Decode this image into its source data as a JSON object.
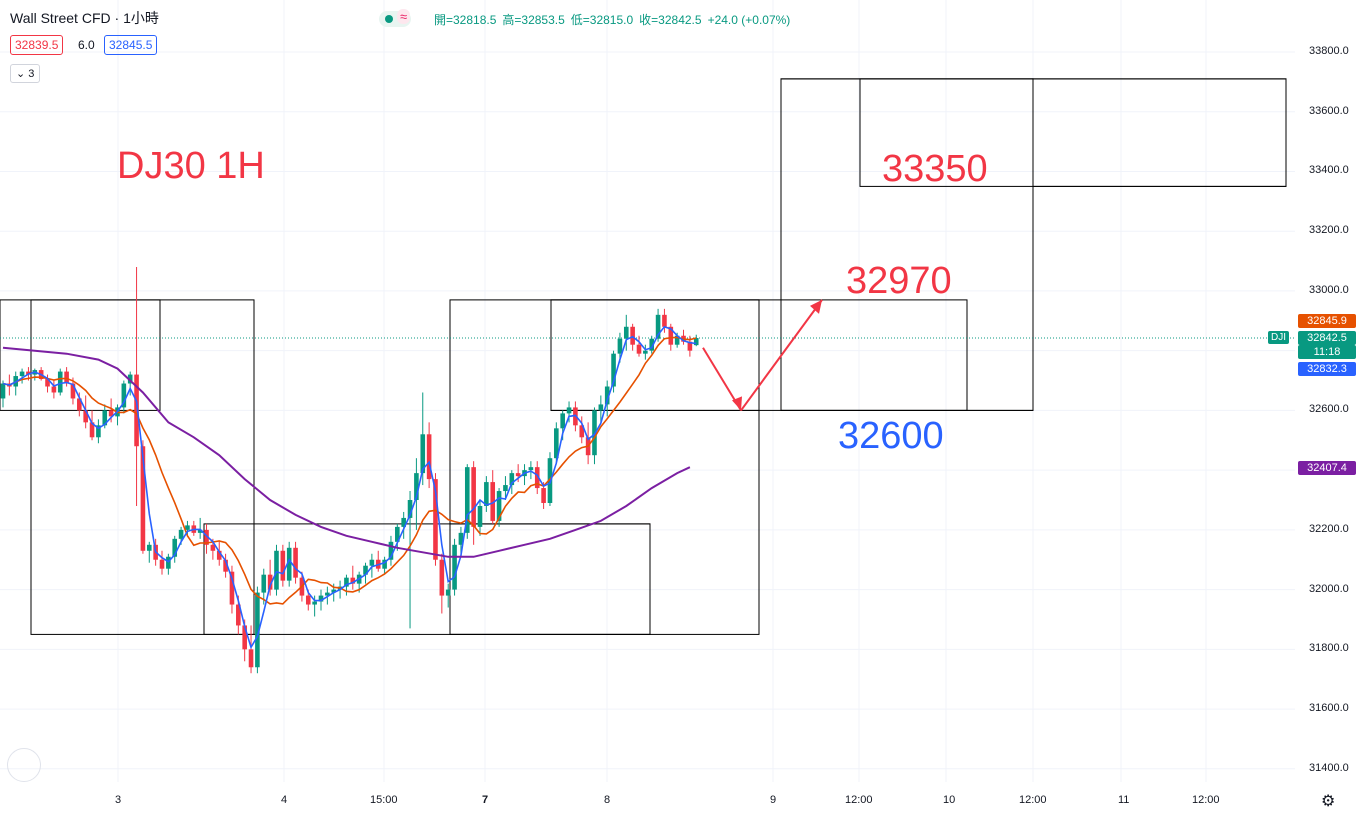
{
  "header": {
    "symbol": "Wall Street CFD",
    "interval_sep": " · ",
    "interval": "1小時",
    "ohlc": {
      "open": "開=32818.5",
      "high": "高=32853.5",
      "low": "低=32815.0",
      "close": "收=32842.5",
      "change": "+24.0 (+0.07%)"
    },
    "sell_price": "32839.5",
    "spread": "6.0",
    "buy_price": "32845.5",
    "indicator_count": "3"
  },
  "icons": [
    "status-dot-icon",
    "approximate-icon",
    "chevron-down-icon",
    "gear-icon",
    "circle-icon"
  ],
  "colors": {
    "up": "#089981",
    "down": "#f23645",
    "ma_fast": "#2962ff",
    "ma_mid": "#e65100",
    "ma_slow": "#7b1fa2",
    "annotation_red": "#f23645",
    "annotation_blue": "#2962ff"
  },
  "price_scale": {
    "ticks": [
      "33800.0",
      "33600.0",
      "33400.0",
      "33200.0",
      "33000.0",
      "32800.0",
      "32600.0",
      "32400.0",
      "32200.0",
      "32000.0",
      "31800.0",
      "31600.0",
      "31400.0"
    ],
    "tags": {
      "ma_mid": "32845.9",
      "last": "32842.5",
      "countdown": "11:18",
      "ma_fast": "32832.3",
      "ma_slow": "32407.4",
      "symbol_tag": "DJI"
    }
  },
  "time_scale": {
    "ticks": [
      "3",
      "4",
      "15:00",
      "7",
      "8",
      "9",
      "12:00",
      "10",
      "12:00",
      "11",
      "12:00"
    ]
  },
  "annotations": {
    "title": "DJ30 1H",
    "target_1": "32970",
    "target_2": "33350",
    "support": "32600"
  },
  "chart_data": {
    "type": "candlestick",
    "title": "DJ30 1H",
    "ylim": [
      31330,
      33850
    ],
    "y_ticks": [
      33800,
      33600,
      33400,
      33200,
      33000,
      32800,
      32600,
      32400,
      32200,
      32000,
      31800,
      31600,
      31400
    ],
    "last_price": 32842.5,
    "grid": true,
    "candles": [
      [
        32640,
        32700,
        32610,
        32690
      ],
      [
        32690,
        32720,
        32650,
        32680
      ],
      [
        32680,
        32730,
        32650,
        32715
      ],
      [
        32715,
        32740,
        32690,
        32730
      ],
      [
        32730,
        32745,
        32700,
        32720
      ],
      [
        32720,
        32740,
        32700,
        32735
      ],
      [
        32735,
        32745,
        32700,
        32705
      ],
      [
        32705,
        32720,
        32660,
        32680
      ],
      [
        32680,
        32700,
        32640,
        32660
      ],
      [
        32660,
        32740,
        32650,
        32730
      ],
      [
        32730,
        32745,
        32680,
        32690
      ],
      [
        32690,
        32710,
        32620,
        32640
      ],
      [
        32640,
        32660,
        32580,
        32600
      ],
      [
        32600,
        32650,
        32540,
        32560
      ],
      [
        32560,
        32600,
        32500,
        32510
      ],
      [
        32510,
        32570,
        32490,
        32550
      ],
      [
        32550,
        32620,
        32540,
        32600
      ],
      [
        32600,
        32640,
        32560,
        32580
      ],
      [
        32580,
        32620,
        32550,
        32610
      ],
      [
        32610,
        32700,
        32590,
        32690
      ],
      [
        32690,
        32730,
        32650,
        32720
      ],
      [
        32720,
        33080,
        32280,
        32480
      ],
      [
        32480,
        32500,
        32120,
        32130
      ],
      [
        32130,
        32160,
        32090,
        32150
      ],
      [
        32150,
        32170,
        32080,
        32100
      ],
      [
        32100,
        32130,
        32050,
        32070
      ],
      [
        32070,
        32120,
        32050,
        32110
      ],
      [
        32110,
        32180,
        32090,
        32170
      ],
      [
        32170,
        32210,
        32150,
        32200
      ],
      [
        32200,
        32230,
        32180,
        32215
      ],
      [
        32215,
        32230,
        32180,
        32190
      ],
      [
        32190,
        32240,
        32170,
        32200
      ],
      [
        32200,
        32220,
        32120,
        32150
      ],
      [
        32150,
        32170,
        32100,
        32130
      ],
      [
        32130,
        32160,
        32080,
        32100
      ],
      [
        32100,
        32120,
        32040,
        32060
      ],
      [
        32060,
        32080,
        31920,
        31950
      ],
      [
        31950,
        31980,
        31850,
        31880
      ],
      [
        31880,
        31900,
        31760,
        31800
      ],
      [
        31800,
        31880,
        31720,
        31740
      ],
      [
        31740,
        32010,
        31720,
        31990
      ],
      [
        31990,
        32070,
        31950,
        32050
      ],
      [
        32050,
        32100,
        31980,
        32000
      ],
      [
        32000,
        32150,
        31980,
        32130
      ],
      [
        32130,
        32150,
        32010,
        32030
      ],
      [
        32030,
        32160,
        32010,
        32140
      ],
      [
        32140,
        32160,
        32020,
        32040
      ],
      [
        32040,
        32060,
        31960,
        31980
      ],
      [
        31980,
        32000,
        31930,
        31950
      ],
      [
        31950,
        31980,
        31910,
        31960
      ],
      [
        31960,
        32000,
        31930,
        31980
      ],
      [
        31980,
        32010,
        31950,
        31990
      ],
      [
        31990,
        32020,
        31960,
        32000
      ],
      [
        32000,
        32030,
        31970,
        32010
      ],
      [
        32010,
        32050,
        31980,
        32040
      ],
      [
        32040,
        32080,
        32000,
        32020
      ],
      [
        32020,
        32060,
        31990,
        32050
      ],
      [
        32050,
        32090,
        32020,
        32080
      ],
      [
        32080,
        32120,
        32040,
        32100
      ],
      [
        32100,
        32130,
        32060,
        32070
      ],
      [
        32070,
        32110,
        32050,
        32100
      ],
      [
        32100,
        32180,
        32080,
        32160
      ],
      [
        32160,
        32220,
        32130,
        32210
      ],
      [
        32210,
        32260,
        32170,
        32240
      ],
      [
        32240,
        32330,
        31870,
        32300
      ],
      [
        32300,
        32440,
        32200,
        32390
      ],
      [
        32390,
        32660,
        32350,
        32520
      ],
      [
        32520,
        32560,
        32340,
        32370
      ],
      [
        32370,
        32390,
        32080,
        32100
      ],
      [
        32100,
        32120,
        31920,
        31980
      ],
      [
        31980,
        32020,
        31940,
        32000
      ],
      [
        32000,
        32170,
        31980,
        32150
      ],
      [
        32150,
        32210,
        32120,
        32190
      ],
      [
        32190,
        32420,
        32170,
        32410
      ],
      [
        32410,
        32430,
        32150,
        32210
      ],
      [
        32210,
        32300,
        32180,
        32280
      ],
      [
        32280,
        32380,
        32260,
        32360
      ],
      [
        32360,
        32400,
        32220,
        32230
      ],
      [
        32230,
        32340,
        32210,
        32330
      ],
      [
        32330,
        32380,
        32300,
        32350
      ],
      [
        32350,
        32400,
        32320,
        32390
      ],
      [
        32390,
        32420,
        32360,
        32380
      ],
      [
        32380,
        32420,
        32350,
        32400
      ],
      [
        32400,
        32430,
        32370,
        32410
      ],
      [
        32410,
        32430,
        32320,
        32340
      ],
      [
        32340,
        32360,
        32270,
        32290
      ],
      [
        32290,
        32460,
        32280,
        32440
      ],
      [
        32440,
        32560,
        32420,
        32540
      ],
      [
        32540,
        32600,
        32500,
        32590
      ],
      [
        32590,
        32630,
        32560,
        32610
      ],
      [
        32610,
        32630,
        32530,
        32550
      ],
      [
        32550,
        32580,
        32490,
        32510
      ],
      [
        32510,
        32560,
        32420,
        32450
      ],
      [
        32450,
        32610,
        32420,
        32600
      ],
      [
        32600,
        32650,
        32560,
        32620
      ],
      [
        32620,
        32700,
        32580,
        32680
      ],
      [
        32680,
        32800,
        32660,
        32790
      ],
      [
        32790,
        32860,
        32760,
        32840
      ],
      [
        32840,
        32920,
        32800,
        32880
      ],
      [
        32880,
        32890,
        32800,
        32820
      ],
      [
        32820,
        32850,
        32780,
        32790
      ],
      [
        32790,
        32820,
        32770,
        32800
      ],
      [
        32800,
        32850,
        32790,
        32840
      ],
      [
        32840,
        32940,
        32830,
        32920
      ],
      [
        32920,
        32940,
        32860,
        32880
      ],
      [
        32880,
        32890,
        32800,
        32820
      ],
      [
        32820,
        32860,
        32810,
        32850
      ],
      [
        32850,
        32870,
        32820,
        32830
      ],
      [
        32830,
        32850,
        32780,
        32800
      ],
      [
        32818.5,
        32853.5,
        32815,
        32842.5
      ]
    ],
    "series": [
      {
        "name": "MA fast",
        "color": "#2962ff"
      },
      {
        "name": "MA mid",
        "color": "#e65100"
      },
      {
        "name": "MA slow",
        "color": "#7b1fa2",
        "points": [
          [
            0,
            32810
          ],
          [
            5,
            32800
          ],
          [
            10,
            32790
          ],
          [
            15,
            32770
          ],
          [
            18,
            32740
          ],
          [
            22,
            32660
          ],
          [
            26,
            32560
          ],
          [
            30,
            32510
          ],
          [
            34,
            32450
          ],
          [
            38,
            32370
          ],
          [
            42,
            32300
          ],
          [
            46,
            32250
          ],
          [
            50,
            32210
          ],
          [
            54,
            32180
          ],
          [
            58,
            32160
          ],
          [
            62,
            32140
          ],
          [
            66,
            32125
          ],
          [
            70,
            32110
          ],
          [
            74,
            32110
          ],
          [
            78,
            32130
          ],
          [
            82,
            32150
          ],
          [
            86,
            32170
          ],
          [
            90,
            32200
          ],
          [
            94,
            32230
          ],
          [
            98,
            32280
          ],
          [
            102,
            32340
          ],
          [
            106,
            32390
          ],
          [
            108,
            32410
          ]
        ]
      }
    ],
    "zones": [
      {
        "top": 32970,
        "bottom": 32600
      },
      {
        "top": 32970,
        "bottom": 31850
      },
      {
        "top": 32220,
        "bottom": 31850
      },
      {
        "top": 32970,
        "bottom": 31850
      },
      {
        "top": 32220,
        "bottom": 31850
      },
      {
        "top": 32970,
        "bottom": 32600
      },
      {
        "top": 32970,
        "bottom": 32600
      },
      {
        "top": 33710,
        "bottom": 32600
      },
      {
        "top": 33710,
        "bottom": 33350
      },
      {
        "top": 33710,
        "bottom": 32600
      },
      {
        "top": 33710,
        "bottom": 33350
      }
    ],
    "projection_path": [
      32830,
      32600,
      32970
    ]
  }
}
